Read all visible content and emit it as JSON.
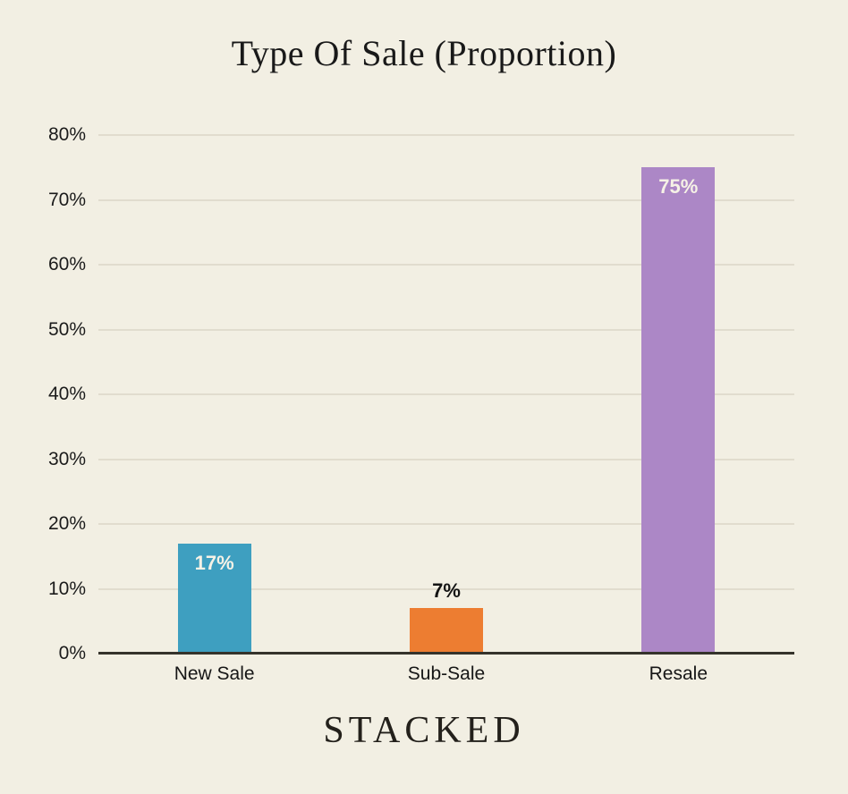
{
  "title": "Type Of Sale (Proportion)",
  "footer": {
    "brand": "STACKED"
  },
  "colors": {
    "background": "#F2EFE3",
    "gridline": "#E1DCCE",
    "axis_line": "#35332B",
    "title_text": "#191919",
    "tick_text": "#1B1B1B",
    "inside_bar_label": "#F6F2E6",
    "outside_bar_label": "#131313"
  },
  "chart_data": {
    "type": "bar",
    "title": "Type Of Sale (Proportion)",
    "categories": [
      "New Sale",
      "Sub-Sale",
      "Resale"
    ],
    "values": [
      17,
      7,
      75
    ],
    "value_labels": [
      "17%",
      "7%",
      "75%"
    ],
    "bar_colors": [
      "#3E9FC0",
      "#ED7D31",
      "#AC87C6"
    ],
    "xlabel": "",
    "ylabel": "",
    "ylim": [
      0,
      80
    ],
    "ytick_step": 10,
    "ytick_labels": [
      "0%",
      "10%",
      "20%",
      "30%",
      "40%",
      "50%",
      "60%",
      "70%",
      "80%"
    ],
    "grid": true,
    "legend": "none"
  }
}
